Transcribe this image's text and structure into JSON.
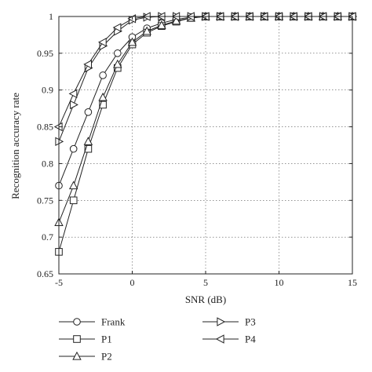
{
  "chart_data": {
    "type": "line",
    "xlabel": "SNR (dB)",
    "ylabel": "Recognition accuracy rate",
    "xlim": [
      -5,
      15
    ],
    "ylim": [
      0.65,
      1
    ],
    "xticks": [
      "-5",
      "0",
      "5",
      "10",
      "15"
    ],
    "yticks": [
      "0.65",
      "0.7",
      "0.75",
      "0.8",
      "0.85",
      "0.9",
      "0.95",
      "1"
    ],
    "grid": true,
    "legend_position": "bottom",
    "x": [
      -5,
      -4,
      -3,
      -2,
      -1,
      0,
      1,
      2,
      3,
      4,
      5,
      6,
      7,
      8,
      9,
      10,
      11,
      12,
      13,
      14,
      15
    ],
    "series": [
      {
        "name": "Frank",
        "marker": "circle",
        "values": [
          0.77,
          0.82,
          0.87,
          0.92,
          0.95,
          0.972,
          0.984,
          0.991,
          0.996,
          0.999,
          1,
          1,
          1,
          1,
          1,
          1,
          1,
          1,
          1,
          1,
          1
        ]
      },
      {
        "name": "P1",
        "marker": "square",
        "values": [
          0.68,
          0.75,
          0.82,
          0.88,
          0.93,
          0.962,
          0.978,
          0.987,
          0.993,
          0.998,
          1,
          1,
          1,
          1,
          1,
          1,
          1,
          1,
          1,
          1,
          1
        ]
      },
      {
        "name": "P2",
        "marker": "triangle-up",
        "values": [
          0.72,
          0.77,
          0.83,
          0.89,
          0.935,
          0.965,
          0.98,
          0.988,
          0.994,
          0.998,
          1,
          1,
          1,
          1,
          1,
          1,
          1,
          1,
          1,
          1,
          1
        ]
      },
      {
        "name": "P3",
        "marker": "triangle-right",
        "values": [
          0.83,
          0.88,
          0.93,
          0.96,
          0.98,
          0.995,
          0.999,
          1,
          1,
          1,
          1,
          1,
          1,
          1,
          1,
          1,
          1,
          1,
          1,
          1,
          1
        ]
      },
      {
        "name": "P4",
        "marker": "triangle-left",
        "values": [
          0.85,
          0.895,
          0.935,
          0.965,
          0.985,
          0.997,
          1,
          1,
          1,
          1,
          1,
          1,
          1,
          1,
          1,
          1,
          1,
          1,
          1,
          1,
          1
        ]
      }
    ]
  }
}
